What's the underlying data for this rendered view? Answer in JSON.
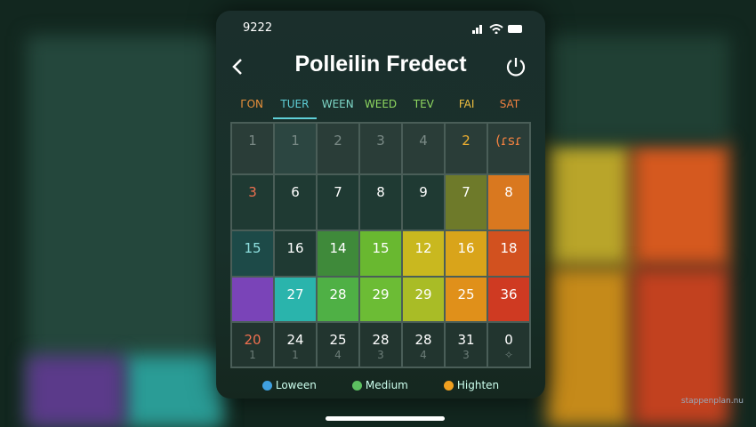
{
  "status_bar": {
    "time": "9222"
  },
  "header": {
    "title": "Polleilin Fredect"
  },
  "weekdays": [
    "ГON",
    "TUER",
    "WEEN",
    "WEED",
    "TEV",
    "FAI",
    "SAT"
  ],
  "grid": {
    "rows": [
      [
        {
          "day": "1",
          "color": "#2a3d38"
        },
        {
          "day": "1",
          "color": "#2c4641"
        },
        {
          "day": "2",
          "color": "#2a3d38"
        },
        {
          "day": "3",
          "color": "#2a3d38"
        },
        {
          "day": "4",
          "color": "#2a3d38"
        },
        {
          "day": "2",
          "color": "#2a3d38"
        },
        {
          "day": "(ɾsɾ",
          "color": "#2a3d38"
        }
      ],
      [
        {
          "day": "3",
          "color": "#1f3a33"
        },
        {
          "day": "6",
          "color": "#1f3a33"
        },
        {
          "day": "7",
          "color": "#1f3a33"
        },
        {
          "day": "8",
          "color": "#1f3a33"
        },
        {
          "day": "9",
          "color": "#1f3a33"
        },
        {
          "day": "7",
          "color": "#6e7a2a"
        },
        {
          "day": "8",
          "color": "#d9781f"
        }
      ],
      [
        {
          "day": "15",
          "color": "#1d4a48"
        },
        {
          "day": "16",
          "color": "#1f3a33"
        },
        {
          "day": "14",
          "color": "#3f8a3a"
        },
        {
          "day": "15",
          "color": "#69b830"
        },
        {
          "day": "12",
          "color": "#c9b81f"
        },
        {
          "day": "16",
          "color": "#d9a41a"
        },
        {
          "day": "18",
          "color": "#d2511f"
        }
      ],
      [
        {
          "day": "",
          "color": "#7a44b8"
        },
        {
          "day": "27",
          "color": "#2ab4ac"
        },
        {
          "day": "28",
          "color": "#4fb045"
        },
        {
          "day": "29",
          "color": "#6cbc35"
        },
        {
          "day": "29",
          "color": "#a9bc26"
        },
        {
          "day": "25",
          "color": "#e0901a"
        },
        {
          "day": "36",
          "color": "#cf3a22"
        }
      ],
      [
        {
          "day": "20",
          "sub": "1",
          "color": "#22352f"
        },
        {
          "day": "24",
          "sub": "1",
          "color": "#22352f"
        },
        {
          "day": "25",
          "sub": "4",
          "color": "#22352f"
        },
        {
          "day": "28",
          "sub": "3",
          "color": "#22352f"
        },
        {
          "day": "28",
          "sub": "4",
          "color": "#22352f"
        },
        {
          "day": "31",
          "sub": "3",
          "color": "#22352f"
        },
        {
          "day": "0",
          "sub": "✧",
          "color": "#22352f"
        }
      ]
    ]
  },
  "legend": [
    {
      "label": "Loween",
      "color": "#3fa0e0"
    },
    {
      "label": "Medium",
      "color": "#5cc060"
    },
    {
      "label": "Highten",
      "color": "#f0a020"
    }
  ],
  "watermark": "stappenplan.nu"
}
